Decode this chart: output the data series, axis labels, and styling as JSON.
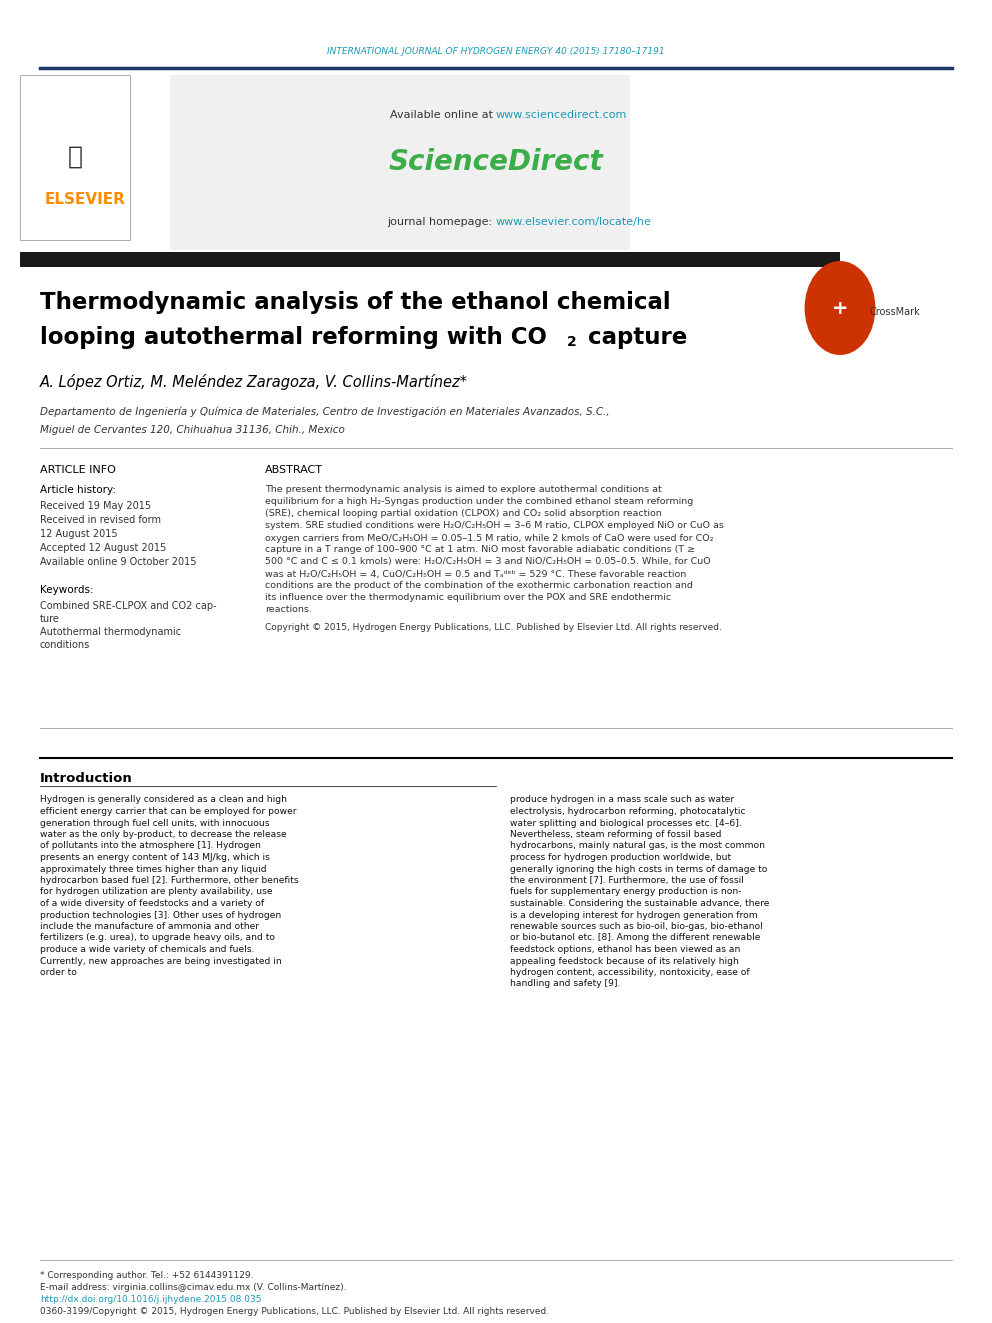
{
  "page_width": 9.92,
  "page_height": 13.23,
  "background_color": "#ffffff",
  "journal_header": "INTERNATIONAL JOURNAL OF HYDROGEN ENERGY 40 (2015) 17180–17191",
  "journal_header_color": "#1a9bb5",
  "available_online_text": "Available online at www.sciencedirect.com",
  "available_online_prefix": "Available online at ",
  "available_online_link": "www.sciencedirect.com",
  "sciencedirect_text": "ScienceDirect",
  "sciencedirect_color": "#3bae4a",
  "journal_homepage_prefix": "journal homepage: ",
  "journal_homepage_link": "www.elsevier.com/locate/he",
  "journal_homepage_color": "#1a9bb5",
  "header_bar_color": "#1a3a6b",
  "title_line1": "Thermodynamic analysis of the ethanol chemical",
  "title_line2": "looping autothermal reforming with CO",
  "title_line2_sub": "2",
  "title_line2_end": " capture",
  "title_color": "#000000",
  "authors": "A. López Ortiz, M. Meléndez Zaragoza, V. Collins-Martínez",
  "authors_asterisk": "*",
  "affiliation_line1": "Departamento de Ingeniería y Química de Materiales, Centro de Investigación en Materiales Avanzados, S.C.,",
  "affiliation_line2": "Miguel de Cervantes 120, Chihuahua 31136, Chih., Mexico",
  "article_info_title": "ARTICLE INFO",
  "article_history_title": "Article history:",
  "received_text": "Received 19 May 2015",
  "revised_text": "Received in revised form",
  "revised_date": "12 August 2015",
  "accepted_text": "Accepted 12 August 2015",
  "online_text": "Available online 9 October 2015",
  "keywords_title": "Keywords:",
  "keyword1": "Combined SRE-CLPOX and CO",
  "keyword1_sub": "2",
  "keyword1_end": " cap-",
  "keyword2": "ture",
  "keyword3": "Autothermal thermodynamic",
  "keyword4": "conditions",
  "abstract_title": "ABSTRACT",
  "abstract_text": "The present thermodynamic analysis is aimed to explore autothermal conditions at equilibrium for a high H₂-Syngas production under the combined ethanol steam reforming (SRE), chemical looping partial oxidation (CLPOX) and CO₂ solid absorption reaction system. SRE studied conditions were H₂O/C₂H₅OH = 3–6 M ratio, CLPOX employed NiO or CuO as oxygen carriers from MeO/C₂H₅OH = 0.05–1.5 M ratio, while 2 kmols of CaO were used for CO₂ capture in a T range of 100–900 °C at 1 atm. NiO most favorable adiabatic conditions (T ≥ 500 °C and C ≤ 0.1 kmols) were: H₂O/C₂H₅OH = 3 and NiO/C₂H₅OH = 0.05–0.5. While, for CuO was at H₂O/C₂H₅OH = 4, CuO/C₂H₅OH = 0.5 and Tₐᵈᵉᵇ = 529 °C. These favorable reaction conditions are the product of the combination of the exothermic carbonation reaction and its influence over the thermodynamic equilibrium over the POX and SRE endothermic reactions.",
  "copyright_text": "Copyright © 2015, Hydrogen Energy Publications, LLC. Published by Elsevier Ltd. All rights reserved.",
  "intro_title": "Introduction",
  "intro_col1": "Hydrogen is generally considered as a clean and high efficient energy carrier that can be employed for power generation through fuel cell units, with innocuous water as the only by-product, to decrease the release of pollutants into the atmosphere [1]. Hydrogen presents an energy content of 143 MJ/kg, which is approximately three times higher than any liquid hydrocarbon based fuel [2]. Furthermore, other benefits for hydrogen utilization are plenty availability, use of a wide diversity of feedstocks and a variety of production technologies [3]. Other uses of hydrogen include the manufacture of ammonia and other fertilizers (e.g. urea), to upgrade heavy oils, and to produce a wide variety of chemicals and fuels. Currently, new approaches are being investigated in order to",
  "intro_col2": "produce hydrogen in a mass scale such as water electrolysis, hydrocarbon reforming, photocatalytic water splitting and biological processes etc. [4–6]. Nevertheless, steam reforming of fossil based hydrocarbons, mainly natural gas, is the most common process for hydrogen production worldwide, but generally ignoring the high costs in terms of damage to the environment [7]. Furthermore, the use of fossil fuels for supplementary energy production is non-sustainable. Considering the sustainable advance, there is a developing interest for hydrogen generation from renewable sources such as bio-oil, bio-gas, bio-ethanol or bio-butanol etc. [8]. Among the different renewable feedstock options, ethanol has been viewed as an appealing feedstock because of its relatively high hydrogen content, accessibility, nontoxicity, ease of handling and safety [9].",
  "footer_text1": "* Corresponding author. Tel.: +52 6144391129.",
  "footer_text2": "E-mail address: virginia.collins@cimav.edu.mx (V. Collins-Martínez).",
  "footer_url": "http://dx.doi.org/10.1016/j.ijhydene.2015.08.035",
  "footer_text3": "0360-3199/Copyright © 2015, Hydrogen Energy Publications, LLC. Published by Elsevier Ltd. All rights reserved.",
  "elsevier_color": "#ff8c00",
  "gray_box_color": "#f0f0f0",
  "separator_color": "#000000",
  "light_separator_color": "#cccccc"
}
